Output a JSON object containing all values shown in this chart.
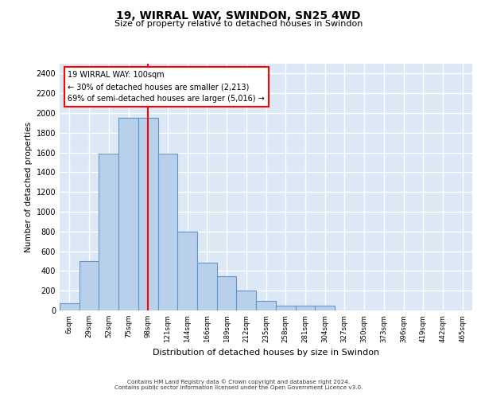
{
  "title1": "19, WIRRAL WAY, SWINDON, SN25 4WD",
  "title2": "Size of property relative to detached houses in Swindon",
  "xlabel": "Distribution of detached houses by size in Swindon",
  "ylabel": "Number of detached properties",
  "categories": [
    "6sqm",
    "29sqm",
    "52sqm",
    "75sqm",
    "98sqm",
    "121sqm",
    "144sqm",
    "166sqm",
    "189sqm",
    "212sqm",
    "235sqm",
    "258sqm",
    "281sqm",
    "304sqm",
    "327sqm",
    "350sqm",
    "373sqm",
    "396sqm",
    "419sqm",
    "442sqm",
    "465sqm"
  ],
  "values": [
    75,
    500,
    1590,
    1950,
    1950,
    1590,
    800,
    480,
    350,
    200,
    100,
    50,
    50,
    50,
    0,
    0,
    0,
    0,
    0,
    0,
    0
  ],
  "bar_color": "#b8d0ea",
  "bar_edge_color": "#6096c8",
  "background_color": "#dce8f5",
  "grid_color": "#ffffff",
  "vline_x_index": 4,
  "vline_color": "red",
  "annotation_line1": "19 WIRRAL WAY: 100sqm",
  "annotation_line2": "← 30% of detached houses are smaller (2,213)",
  "annotation_line3": "69% of semi-detached houses are larger (5,016) →",
  "footer1": "Contains HM Land Registry data © Crown copyright and database right 2024.",
  "footer2": "Contains public sector information licensed under the Open Government Licence v3.0.",
  "ylim": [
    0,
    2500
  ],
  "yticks": [
    0,
    200,
    400,
    600,
    800,
    1000,
    1200,
    1400,
    1600,
    1800,
    2000,
    2200,
    2400
  ]
}
